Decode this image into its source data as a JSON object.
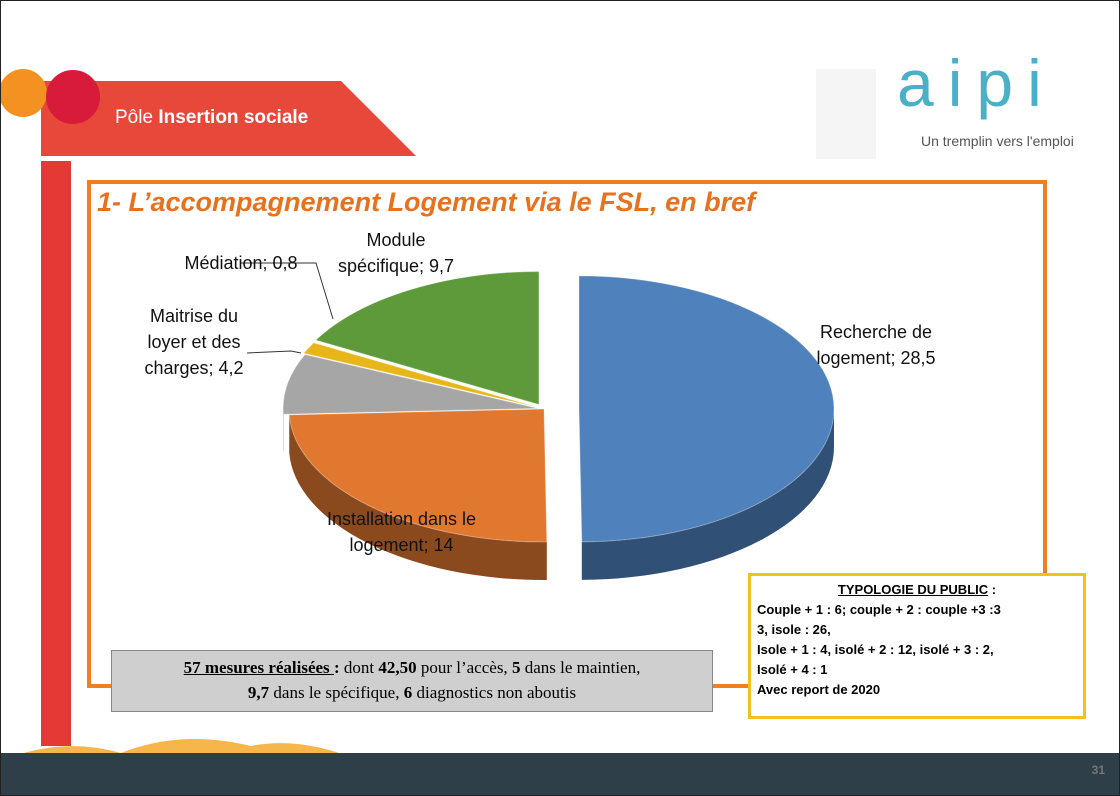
{
  "header": {
    "pole": "Pôle",
    "title": "Insertion sociale"
  },
  "logo": {
    "name": "aipi",
    "tagline": "Un tremplin vers l'emploi"
  },
  "chart_data": {
    "type": "pie",
    "title": "1- L’accompagnement Logement via le FSL, en bref",
    "values": [
      28.5,
      14,
      4.2,
      0.8,
      9.7
    ],
    "value_labels": [
      "Recherche de logement; 28,5",
      "Installation dans le logement; 14",
      "Maitrise du loyer et des charges; 4,2",
      "Médiation; 0,8",
      "Module spécifique; 9,7"
    ],
    "colors": [
      "#4f81bd",
      "#e0782f",
      "#a6a6a6",
      "#e8b619",
      "#5e9a3a"
    ]
  },
  "summary": {
    "parts": [
      "57 mesures réalisées ",
      " : ",
      "dont ",
      "42,50",
      " pour l’accès, ",
      "5",
      " dans le maintien, ",
      "9,7",
      "  dans le spécifique, ",
      "6",
      " diagnostics non aboutis"
    ]
  },
  "typology": {
    "title": "TYPOLOGIE DU PUBLIC",
    "colon": " :",
    "lines": [
      "Couple + 1 : 6; couple + 2 :  couple +3 :3",
      "3, isole : 26,",
      "Isole + 1 : 4, isolé + 2 : 12, isolé + 3 : 2,",
      "Isolé + 4 : 1",
      "Avec report de 2020"
    ]
  },
  "page_number": "31"
}
